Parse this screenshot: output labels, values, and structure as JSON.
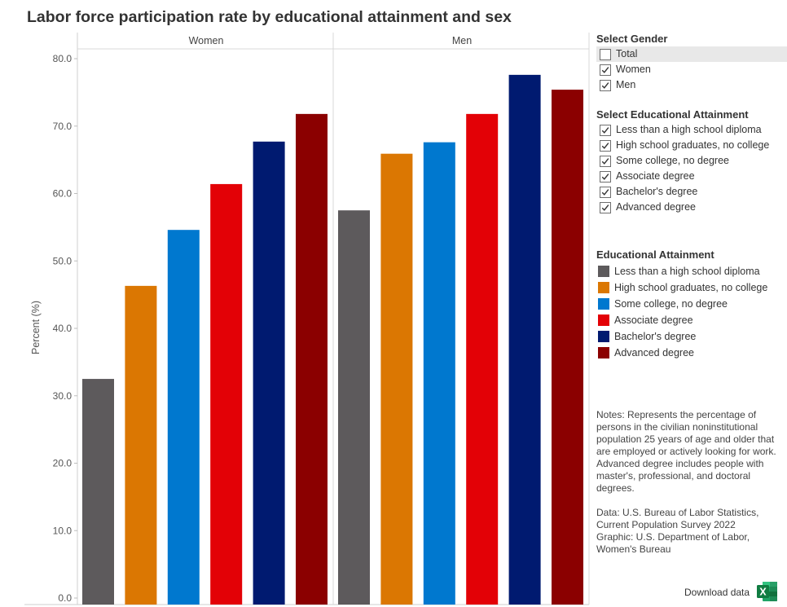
{
  "title": "Labor force participation rate by educational attainment and sex",
  "filters": {
    "gender": {
      "heading": "Select Gender",
      "items": [
        {
          "label": "Total",
          "checked": false
        },
        {
          "label": "Women",
          "checked": true
        },
        {
          "label": "Men",
          "checked": true
        }
      ]
    },
    "education": {
      "heading": "Select Educational Attainment",
      "items": [
        {
          "label": "Less than a high school diploma",
          "checked": true
        },
        {
          "label": "High school graduates, no college",
          "checked": true
        },
        {
          "label": "Some college, no degree",
          "checked": true
        },
        {
          "label": "Associate degree",
          "checked": true
        },
        {
          "label": "Bachelor's degree",
          "checked": true
        },
        {
          "label": "Advanced degree",
          "checked": true
        }
      ]
    }
  },
  "legend": {
    "heading": "Educational Attainment",
    "items": [
      {
        "label": "Less than a high school diploma",
        "color": "#5d5a5c"
      },
      {
        "label": "High school graduates, no college",
        "color": "#db7702"
      },
      {
        "label": "Some college, no degree",
        "color": "#0078cf"
      },
      {
        "label": "Associate degree",
        "color": "#e30106"
      },
      {
        "label": "Bachelor's degree",
        "color": "#001a70"
      },
      {
        "label": "Advanced degree",
        "color": "#8b0000"
      }
    ]
  },
  "notes": {
    "text": "Notes: Represents the percentage of persons in the civilian noninstitutional population 25 years of age and older that are employed or actively looking for work. Advanced degree includes people with master's, professional, and doctoral degrees.",
    "source_line1": "Data: U.S. Bureau of Labor Statistics, Current Population Survey 2022",
    "source_line2": "Graphic: U.S. Department of Labor, Women's Bureau"
  },
  "download": {
    "label": "Download data",
    "icon": "excel-icon"
  },
  "chart_data": {
    "type": "bar",
    "ylabel": "Percent (%)",
    "ylim": [
      0,
      80
    ],
    "yticks": [
      "0.0",
      "10.0",
      "20.0",
      "30.0",
      "40.0",
      "50.0",
      "60.0",
      "70.0",
      "80.0"
    ],
    "panels": [
      "Women",
      "Men"
    ],
    "categories": [
      "Less than a high school diploma",
      "High school graduates, no college",
      "Some college, no degree",
      "Associate degree",
      "Bachelor's degree",
      "Advanced degree"
    ],
    "colors": [
      "#5d5a5c",
      "#db7702",
      "#0078cf",
      "#e30106",
      "#001a70",
      "#8b0000"
    ],
    "series": [
      {
        "name": "Women",
        "values": [
          32.5,
          46.3,
          54.6,
          61.4,
          67.7,
          71.8
        ]
      },
      {
        "name": "Men",
        "values": [
          57.5,
          65.9,
          67.6,
          71.8,
          77.6,
          75.4
        ]
      }
    ],
    "grid": false
  }
}
